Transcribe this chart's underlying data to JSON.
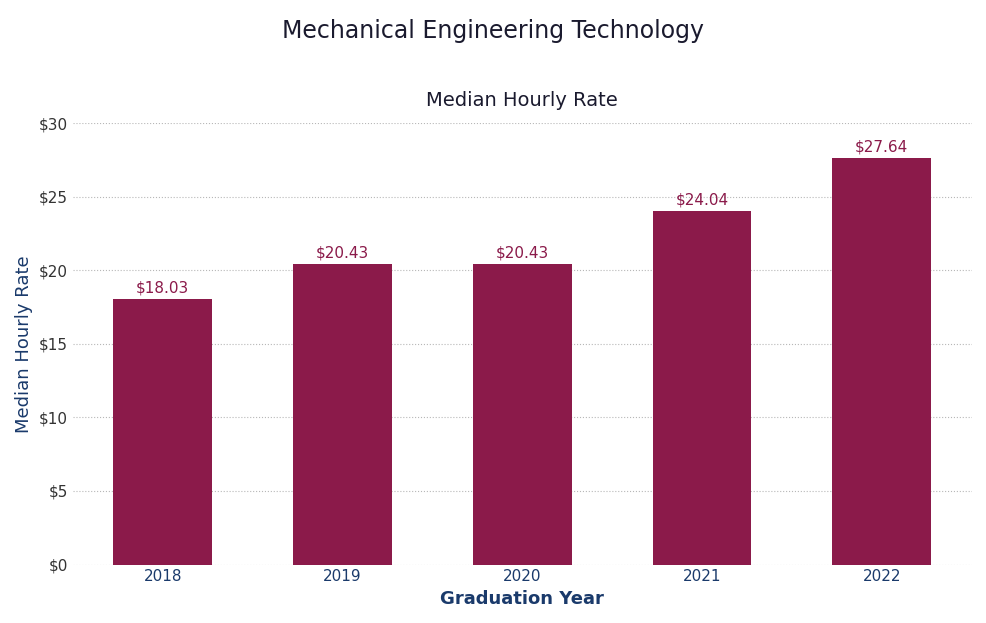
{
  "title_line1": "Mechanical Engineering Technology",
  "title_line2": "Median Hourly Rate",
  "categories": [
    "2018",
    "2019",
    "2020",
    "2021",
    "2022"
  ],
  "values": [
    18.03,
    20.43,
    20.43,
    24.04,
    27.64
  ],
  "labels": [
    "$18.03",
    "$20.43",
    "$20.43",
    "$24.04",
    "$27.64"
  ],
  "bar_color": "#8B1A4A",
  "label_color": "#8B1A4A",
  "xlabel": "Graduation Year",
  "ylabel": "Median Hourly Rate",
  "ylim": [
    0,
    30
  ],
  "yticks": [
    0,
    5,
    10,
    15,
    20,
    25,
    30
  ],
  "ytick_labels": [
    "$0",
    "$5",
    "$10",
    "$15",
    "$20",
    "$25",
    "$30"
  ],
  "background_color": "#ffffff",
  "title1_fontsize": 17,
  "title2_fontsize": 14,
  "axis_label_fontsize": 13,
  "tick_fontsize": 11,
  "bar_label_fontsize": 11,
  "title1_color": "#1a1a2e",
  "title2_color": "#1a1a2e",
  "xlabel_color": "#1a3a6b",
  "ylabel_color": "#1a3a6b",
  "xtick_color": "#1a3a6b",
  "ytick_color": "#333333",
  "grid_color": "#b0b0b0",
  "grid_style": ":",
  "grid_alpha": 0.9,
  "bar_width": 0.55
}
